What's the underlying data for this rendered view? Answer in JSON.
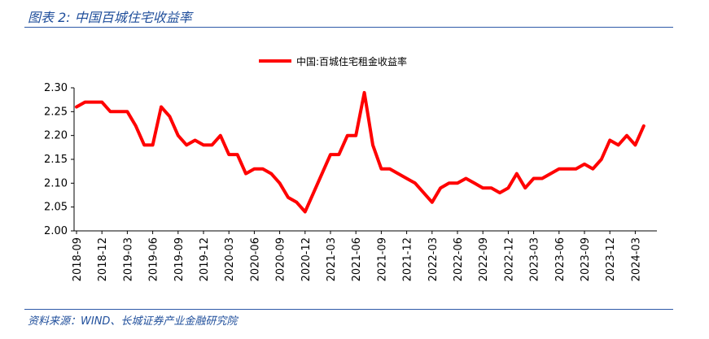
{
  "figure": {
    "title": "图表 2:  中国百城住宅收益率",
    "source": "资料来源：WIND、长城证券产业金融研究院"
  },
  "colors": {
    "series": "#ff0000",
    "rule": "#2e5aa8",
    "caption": "#1f4e9b"
  },
  "chart_data": {
    "type": "line",
    "title": "",
    "xlabel": "",
    "ylabel": "",
    "ylim": [
      2.0,
      2.3
    ],
    "yticks": [
      "2.00",
      "2.05",
      "2.10",
      "2.15",
      "2.20",
      "2.25",
      "2.30"
    ],
    "xticks": [
      "2018-09",
      "2018-12",
      "2019-03",
      "2019-06",
      "2019-09",
      "2019-12",
      "2020-03",
      "2020-06",
      "2020-09",
      "2020-12",
      "2021-03",
      "2021-06",
      "2021-09",
      "2021-12",
      "2022-03",
      "2022-06",
      "2022-09",
      "2022-12",
      "2023-03",
      "2023-06",
      "2023-09",
      "2023-12",
      "2024-03"
    ],
    "legend_position": "top-center",
    "grid": false,
    "x": [
      "2018-09",
      "2018-10",
      "2018-11",
      "2018-12",
      "2019-01",
      "2019-02",
      "2019-03",
      "2019-04",
      "2019-05",
      "2019-06",
      "2019-07",
      "2019-08",
      "2019-09",
      "2019-10",
      "2019-11",
      "2019-12",
      "2020-01",
      "2020-02",
      "2020-03",
      "2020-04",
      "2020-05",
      "2020-06",
      "2020-07",
      "2020-08",
      "2020-09",
      "2020-10",
      "2020-11",
      "2020-12",
      "2021-01",
      "2021-02",
      "2021-03",
      "2021-04",
      "2021-05",
      "2021-06",
      "2021-07",
      "2021-08",
      "2021-09",
      "2021-10",
      "2021-11",
      "2021-12",
      "2022-01",
      "2022-02",
      "2022-03",
      "2022-04",
      "2022-05",
      "2022-06",
      "2022-07",
      "2022-08",
      "2022-09",
      "2022-10",
      "2022-11",
      "2022-12",
      "2023-01",
      "2023-02",
      "2023-03",
      "2023-04",
      "2023-05",
      "2023-06",
      "2023-07",
      "2023-08",
      "2023-09",
      "2023-10",
      "2023-11",
      "2023-12",
      "2024-01",
      "2024-02",
      "2024-03",
      "2024-04"
    ],
    "series": [
      {
        "name": "中国:百城住宅租金收益率",
        "values": [
          2.26,
          2.27,
          2.27,
          2.27,
          2.25,
          2.25,
          2.25,
          2.22,
          2.18,
          2.18,
          2.26,
          2.24,
          2.2,
          2.18,
          2.19,
          2.18,
          2.18,
          2.2,
          2.16,
          2.16,
          2.12,
          2.13,
          2.13,
          2.12,
          2.1,
          2.07,
          2.06,
          2.04,
          2.08,
          2.12,
          2.16,
          2.16,
          2.2,
          2.2,
          2.29,
          2.18,
          2.13,
          2.13,
          2.12,
          2.11,
          2.1,
          2.08,
          2.06,
          2.09,
          2.1,
          2.1,
          2.11,
          2.1,
          2.09,
          2.09,
          2.08,
          2.09,
          2.12,
          2.09,
          2.11,
          2.11,
          2.12,
          2.13,
          2.13,
          2.13,
          2.14,
          2.13,
          2.15,
          2.19,
          2.18,
          2.2,
          2.18,
          2.22
        ]
      }
    ]
  }
}
